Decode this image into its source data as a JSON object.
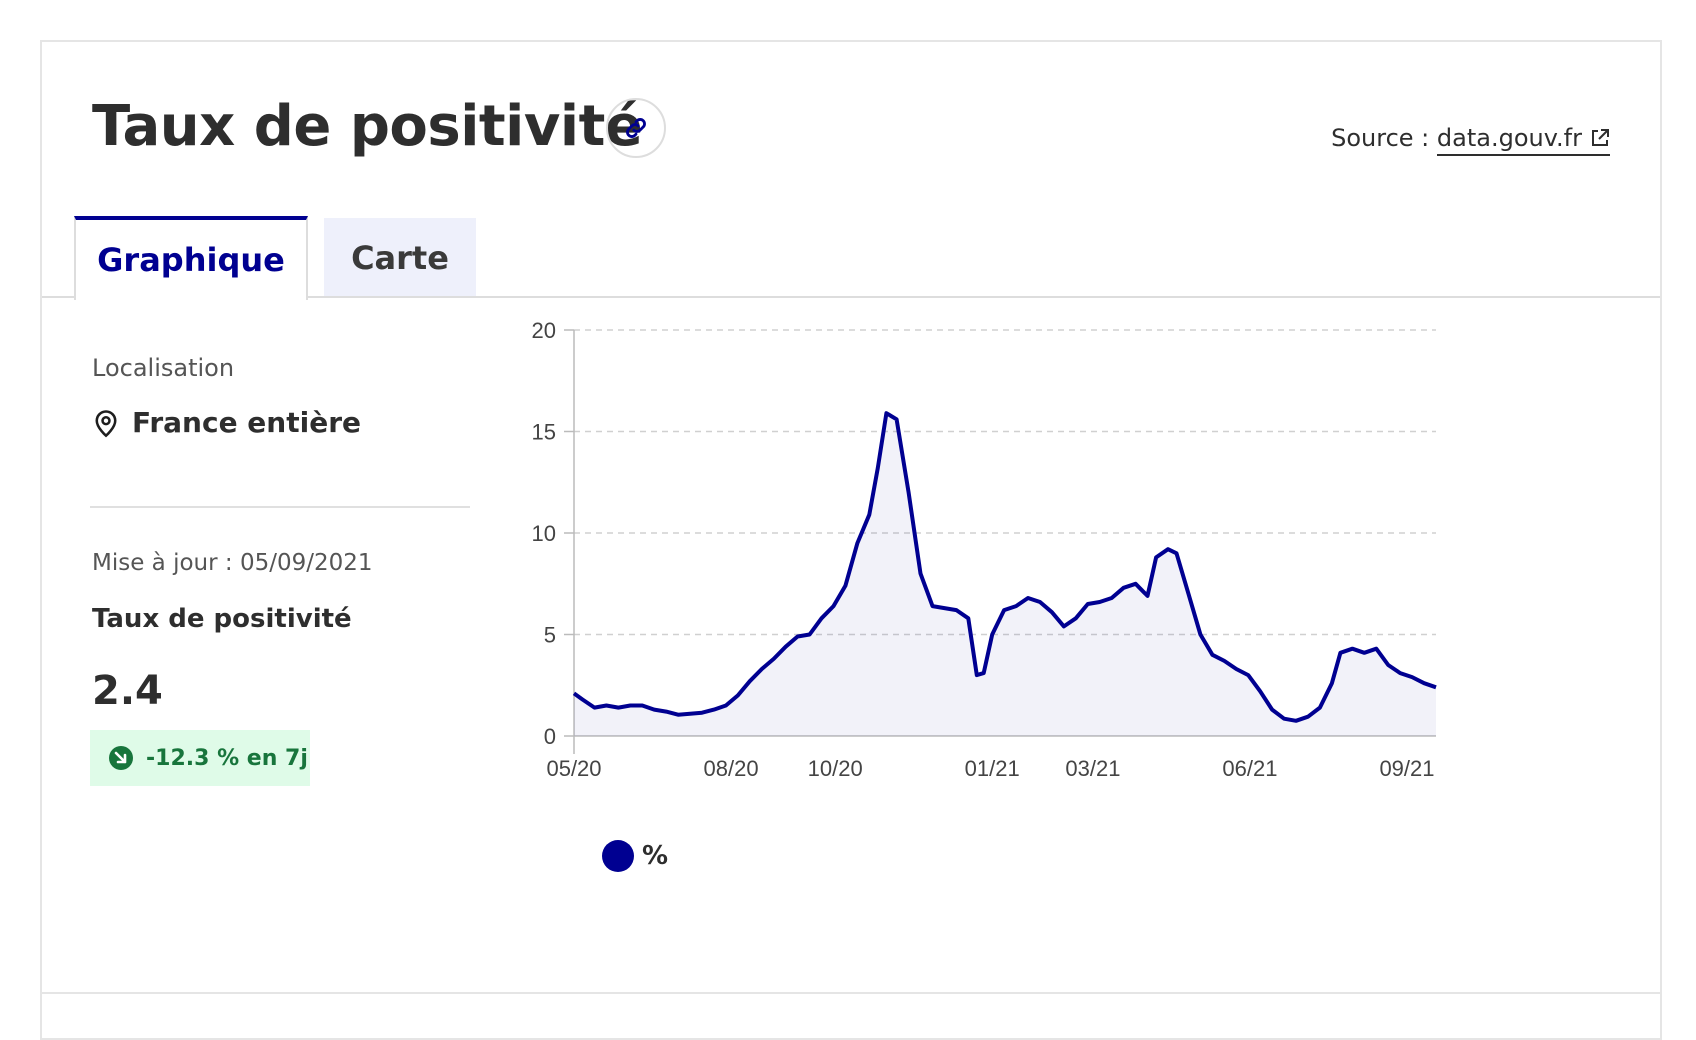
{
  "header": {
    "title": "Taux de positivité",
    "source_label": "Source : ",
    "source_link": "data.gouv.fr"
  },
  "tabs": [
    {
      "label": "Graphique",
      "active": true
    },
    {
      "label": "Carte",
      "active": false
    }
  ],
  "sidebar": {
    "location_label": "Localisation",
    "location_value": "France entière",
    "update_text": "Mise à jour : 05/09/2021",
    "kpi_title": "Taux de positivité",
    "kpi_value": "2.4",
    "trend_text": "-12.3 % en 7j"
  },
  "colors": {
    "primary": "#000091",
    "trend_bg": "#dffbe8",
    "trend_text": "#18753c"
  },
  "icons": {
    "link": "link-icon",
    "external": "external-link-icon",
    "location": "map-pin-icon",
    "trend": "arrow-down-right-icon"
  },
  "chart_data": {
    "type": "area",
    "series": [
      {
        "name": "%",
        "color": "#000091",
        "points": [
          [
            "2020-05-13",
            2.1
          ],
          [
            "2020-05-18",
            1.8
          ],
          [
            "2020-05-25",
            1.4
          ],
          [
            "2020-06-01",
            1.5
          ],
          [
            "2020-06-08",
            1.4
          ],
          [
            "2020-06-15",
            1.5
          ],
          [
            "2020-06-22",
            1.5
          ],
          [
            "2020-06-29",
            1.3
          ],
          [
            "2020-07-06",
            1.2
          ],
          [
            "2020-07-13",
            1.05
          ],
          [
            "2020-07-20",
            1.1
          ],
          [
            "2020-07-27",
            1.15
          ],
          [
            "2020-08-03",
            1.3
          ],
          [
            "2020-08-10",
            1.5
          ],
          [
            "2020-08-17",
            2.0
          ],
          [
            "2020-08-24",
            2.7
          ],
          [
            "2020-08-31",
            3.3
          ],
          [
            "2020-09-07",
            3.8
          ],
          [
            "2020-09-14",
            4.4
          ],
          [
            "2020-09-21",
            4.9
          ],
          [
            "2020-09-28",
            5.0
          ],
          [
            "2020-10-05",
            5.8
          ],
          [
            "2020-10-12",
            6.4
          ],
          [
            "2020-10-19",
            7.4
          ],
          [
            "2020-10-26",
            9.5
          ],
          [
            "2020-11-02",
            10.9
          ],
          [
            "2020-11-07",
            13.2
          ],
          [
            "2020-11-12",
            15.9
          ],
          [
            "2020-11-18",
            15.6
          ],
          [
            "2020-11-25",
            12.0
          ],
          [
            "2020-12-02",
            8.0
          ],
          [
            "2020-12-09",
            6.4
          ],
          [
            "2020-12-16",
            6.3
          ],
          [
            "2020-12-23",
            6.2
          ],
          [
            "2020-12-30",
            5.8
          ],
          [
            "2021-01-04",
            3.0
          ],
          [
            "2021-01-08",
            3.1
          ],
          [
            "2021-01-13",
            5.0
          ],
          [
            "2021-01-20",
            6.2
          ],
          [
            "2021-01-27",
            6.4
          ],
          [
            "2021-02-03",
            6.8
          ],
          [
            "2021-02-10",
            6.6
          ],
          [
            "2021-02-17",
            6.1
          ],
          [
            "2021-02-24",
            5.4
          ],
          [
            "2021-03-03",
            5.8
          ],
          [
            "2021-03-10",
            6.5
          ],
          [
            "2021-03-17",
            6.6
          ],
          [
            "2021-03-24",
            6.8
          ],
          [
            "2021-03-31",
            7.3
          ],
          [
            "2021-04-07",
            7.5
          ],
          [
            "2021-04-14",
            6.9
          ],
          [
            "2021-04-19",
            8.8
          ],
          [
            "2021-04-26",
            9.2
          ],
          [
            "2021-05-01",
            9.0
          ],
          [
            "2021-05-08",
            7.0
          ],
          [
            "2021-05-15",
            5.0
          ],
          [
            "2021-05-22",
            4.0
          ],
          [
            "2021-05-29",
            3.7
          ],
          [
            "2021-06-05",
            3.3
          ],
          [
            "2021-06-12",
            3.0
          ],
          [
            "2021-06-19",
            2.2
          ],
          [
            "2021-06-26",
            1.3
          ],
          [
            "2021-07-03",
            0.85
          ],
          [
            "2021-07-10",
            0.75
          ],
          [
            "2021-07-17",
            0.95
          ],
          [
            "2021-07-24",
            1.4
          ],
          [
            "2021-07-31",
            2.6
          ],
          [
            "2021-08-05",
            4.1
          ],
          [
            "2021-08-12",
            4.3
          ],
          [
            "2021-08-19",
            4.1
          ],
          [
            "2021-08-26",
            4.3
          ],
          [
            "2021-09-02",
            3.5
          ],
          [
            "2021-09-09",
            3.1
          ],
          [
            "2021-09-16",
            2.9
          ],
          [
            "2021-09-23",
            2.6
          ],
          [
            "2021-09-30",
            2.4
          ]
        ]
      }
    ],
    "x_ticks": [
      "05/20",
      "08/20",
      "10/20",
      "01/21",
      "03/21",
      "06/21",
      "09/21"
    ],
    "x_tick_dates": [
      "2020-05-13",
      "2020-08-13",
      "2020-10-13",
      "2021-01-13",
      "2021-03-13",
      "2021-06-13",
      "2021-09-13"
    ],
    "y_ticks": [
      0,
      5,
      10,
      15,
      20
    ],
    "xlim": [
      "2020-05-13",
      "2021-09-30"
    ],
    "ylim": [
      0,
      20
    ],
    "grid": true,
    "legend": "bottom-left"
  }
}
